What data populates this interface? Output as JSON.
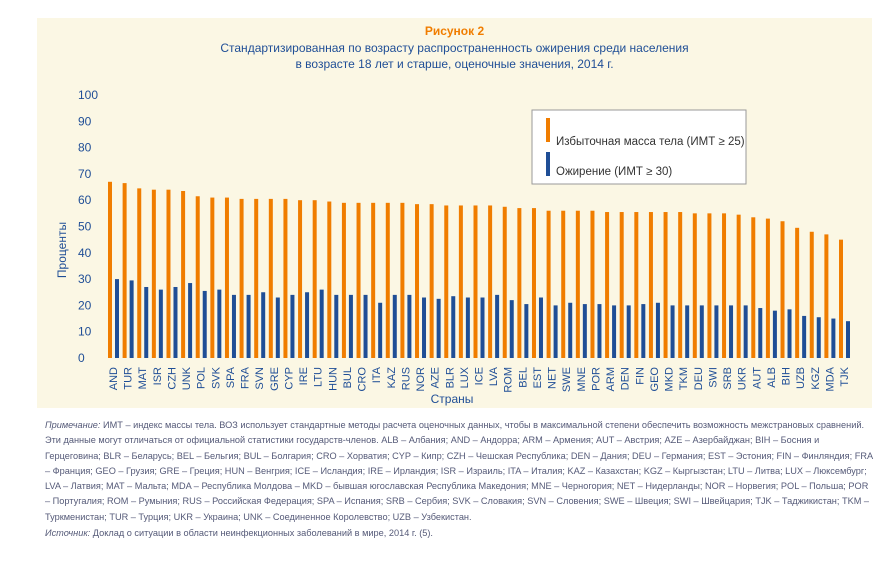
{
  "figure": {
    "label": "Рисунок 2",
    "title_line1": "Стандартизированная по возрасту распространенность ожирения среди населения",
    "title_line2": "в возрасте 18 лет и старше, оценочные значения, 2014 г."
  },
  "colors": {
    "overweight": "#f07d00",
    "obesity": "#1f4e96",
    "panel": "#fbf7e4",
    "axis_text": "#1f4e96"
  },
  "chart_data": {
    "type": "bar",
    "xlabel": "Страны",
    "ylabel": "Проценты",
    "ylim": [
      0,
      100
    ],
    "yticks": [
      0,
      10,
      20,
      30,
      40,
      50,
      60,
      70,
      80,
      90,
      100
    ],
    "legend_position": "top-right",
    "categories": [
      "AND",
      "TUR",
      "MAT",
      "ISR",
      "CZH",
      "UNK",
      "POL",
      "SVK",
      "SPA",
      "FRA",
      "SVN",
      "GRE",
      "CYP",
      "IRE",
      "LTU",
      "HUN",
      "BUL",
      "CRO",
      "ITA",
      "KAZ",
      "RUS",
      "NOR",
      "AZE",
      "BLR",
      "LUX",
      "ICE",
      "LVA",
      "ROM",
      "BEL",
      "EST",
      "NET",
      "SWE",
      "MNE",
      "POR",
      "ARM",
      "DEN",
      "FIN",
      "GEO",
      "MKD",
      "TKM",
      "DEU",
      "SWI",
      "SRB",
      "UKR",
      "AUT",
      "ALB",
      "BIH",
      "UZB",
      "KGZ",
      "MDA",
      "TJK"
    ],
    "series": [
      {
        "name": "Избыточная масса тела (ИМТ ≥ 25)",
        "values": [
          67,
          66.5,
          64.5,
          64,
          64,
          63.5,
          61.5,
          61,
          61,
          60.5,
          60.5,
          60.5,
          60.5,
          60,
          60,
          59.5,
          59,
          59,
          59,
          59,
          59,
          58.5,
          58.5,
          58,
          58,
          58,
          58,
          57.5,
          57,
          57,
          56,
          56,
          56,
          56,
          55.5,
          55.5,
          55.5,
          55.5,
          55.5,
          55.5,
          55,
          55,
          55,
          54.5,
          53.5,
          53,
          52,
          49.5,
          48,
          47,
          45
        ]
      },
      {
        "name": "Ожирение (ИМТ ≥ 30)",
        "values": [
          30,
          29.5,
          27,
          26,
          27,
          28.5,
          25.5,
          26,
          24,
          24,
          25,
          23,
          24,
          25,
          26,
          24,
          24,
          24,
          21,
          24,
          24,
          23,
          22.5,
          23.5,
          23,
          23,
          24,
          22,
          20.5,
          23,
          20,
          21,
          20.5,
          20.5,
          20,
          20,
          20.5,
          21,
          20,
          20,
          20,
          20,
          20,
          20,
          19,
          18,
          18.5,
          16,
          15.5,
          15,
          14
        ]
      }
    ]
  },
  "notes": {
    "prefix": "Примечание:",
    "text": " ИМТ – индекс массы тела. ВОЗ использует стандартные методы расчета оценочных данных, чтобы в максимальной степени обеспечить возможность межстрановых сравнений. Эти данные могут отличаться от официальной статистики государств-членов. ALB – Албания; AND – Андорра; ARM – Армения; AUT – Австрия; AZE – Азербайджан; BIH – Босния и Герцеговина; BLR – Беларусь; BEL – Бельгия; BUL – Болгария; CRO – Хорватия; CYP – Кипр; CZH – Чешская Республика; DEN – Дания; DEU – Германия; EST – Эстония; FIN – Финляндия; FRA – Франция; GEO – Грузия; GRE – Греция; HUN – Венгрия; ICE – Исландия; IRE – Ирландия; ISR – Израиль; ITA – Италия; KAZ – Казахстан; KGZ – Кыргызстан; LTU – Литва; LUX – Люксембург; LVA – Латвия; MAT – Мальта; MDA – Республика Молдова – MKD – бывшая югославская Республика Македония; MNE – Черногория; NET – Нидерланды; NOR – Норвегия; POL – Польша; POR – Португалия; ROM – Румыния; RUS – Российская Федерация; SPA – Испания; SRB – Сербия; SVK – Словакия; SVN – Словения; SWE – Швеция; SWI – Швейцария; TJK – Таджикистан; TKM – Туркменистан; TUR – Турция; UKR – Украина; UNK – Соединенное Королевство; UZB – Узбекистан."
  },
  "source": {
    "prefix": "Источник:",
    "text": " Доклад о ситуации в области неинфекционных заболеваний в мире, 2014 г. (5)."
  }
}
